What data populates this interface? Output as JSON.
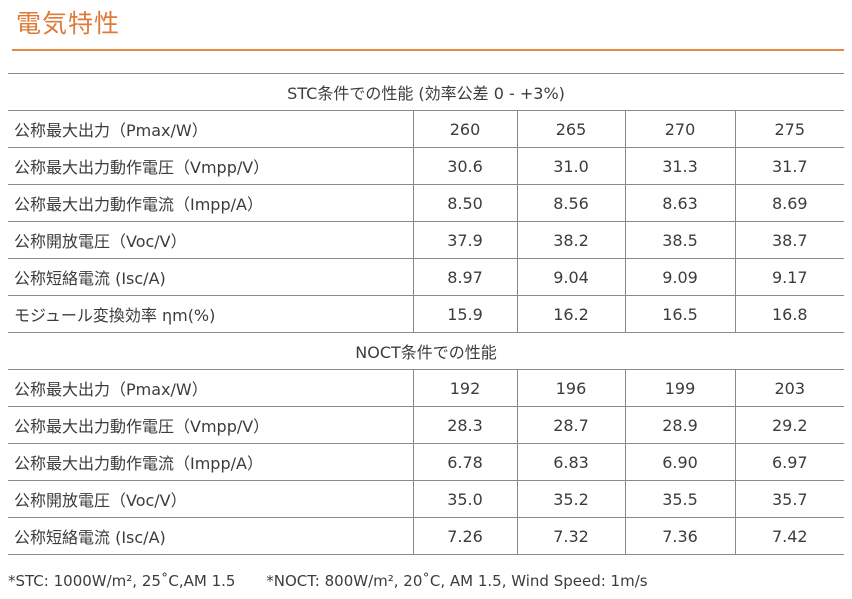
{
  "title": "電気特性",
  "stc_header": "STC条件での性能 (効率公差 0 - +3%)",
  "stc_rows": [
    {
      "label": "公称最大出力（Pmax/W）",
      "values": [
        "260",
        "265",
        "270",
        "275"
      ]
    },
    {
      "label": "公称最大出力動作電圧（Vmpp/V）",
      "values": [
        "30.6",
        "31.0",
        "31.3",
        "31.7"
      ]
    },
    {
      "label": "公称最大出力動作電流（Impp/A）",
      "values": [
        "8.50",
        "8.56",
        "8.63",
        "8.69"
      ]
    },
    {
      "label": "公称開放電圧（Voc/V）",
      "values": [
        "37.9",
        "38.2",
        "38.5",
        "38.7"
      ]
    },
    {
      "label": "公称短絡電流 (Isc/A)",
      "values": [
        "8.97",
        "9.04",
        "9.09",
        "9.17"
      ]
    },
    {
      "label": "モジュール変換効率 ηm(%)",
      "values": [
        "15.9",
        "16.2",
        "16.5",
        "16.8"
      ]
    }
  ],
  "noct_header": "NOCT条件での性能",
  "noct_rows": [
    {
      "label": "公称最大出力（Pmax/W）",
      "values": [
        "192",
        "196",
        "199",
        "203"
      ]
    },
    {
      "label": "公称最大出力動作電圧（Vmpp/V）",
      "values": [
        "28.3",
        "28.7",
        "28.9",
        "29.2"
      ]
    },
    {
      "label": "公称最大出力動作電流（Impp/A）",
      "values": [
        "6.78",
        "6.83",
        "6.90",
        "6.97"
      ]
    },
    {
      "label": "公称開放電圧（Voc/V）",
      "values": [
        "35.0",
        "35.2",
        "35.5",
        "35.7"
      ]
    },
    {
      "label": "公称短絡電流 (Isc/A)",
      "values": [
        "7.26",
        "7.32",
        "7.36",
        "7.42"
      ]
    }
  ],
  "footnotes": {
    "stc": "*STC: 1000W/m², 25˚C,AM 1.5",
    "noct": "*NOCT: 800W/m², 20˚C, AM 1.5, Wind Speed: 1m/s"
  },
  "colors": {
    "accent": "#e07a3a",
    "rule": "#8a8a8a",
    "text": "#3c3c3c"
  }
}
